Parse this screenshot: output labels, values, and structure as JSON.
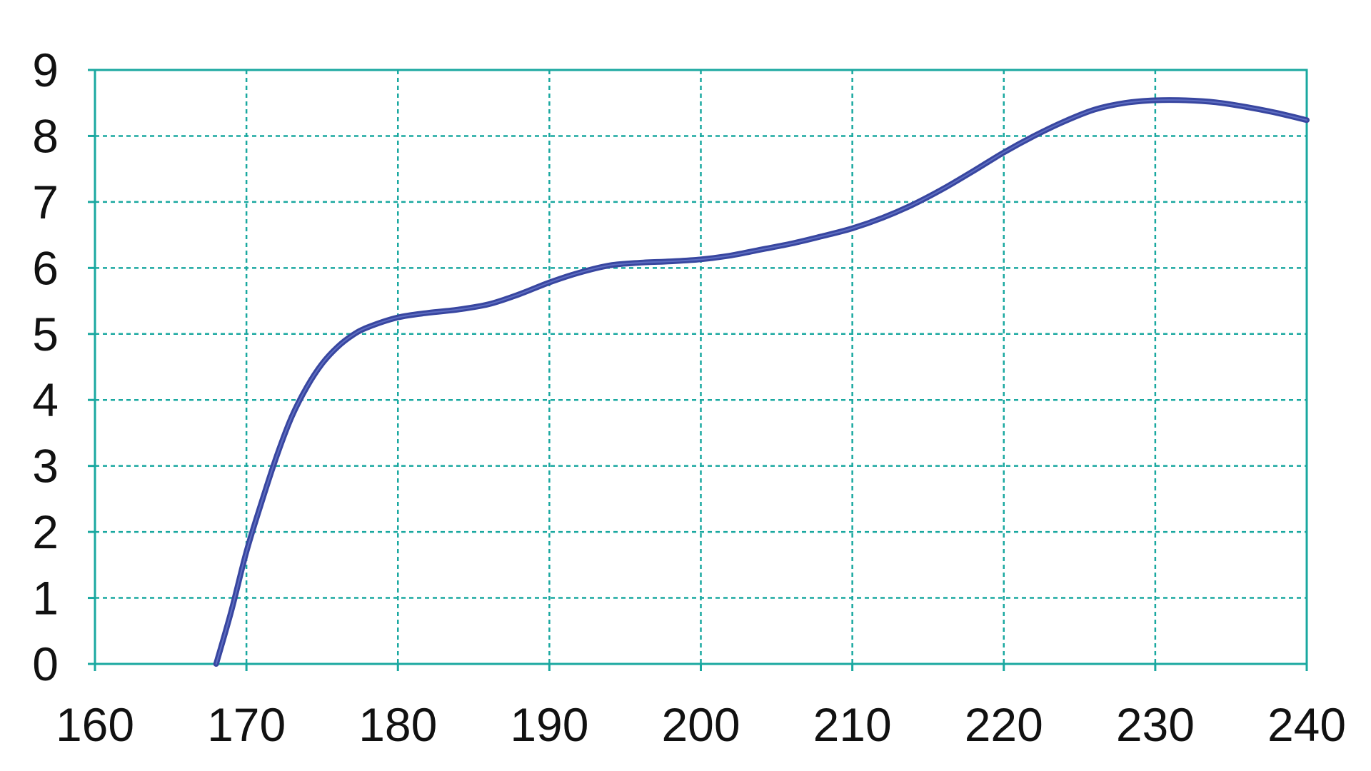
{
  "chart_data": {
    "type": "line",
    "title": "",
    "xlabel": "",
    "ylabel": "",
    "xlim": [
      160,
      240
    ],
    "ylim": [
      0,
      9
    ],
    "x_ticks": [
      160,
      170,
      180,
      190,
      200,
      210,
      220,
      230,
      240
    ],
    "y_ticks": [
      0,
      1,
      2,
      3,
      4,
      5,
      6,
      7,
      8,
      9
    ],
    "grid": true,
    "legend": "none",
    "colors": {
      "grid": "#1aa8a0",
      "axis": "#1aa8a0",
      "line": "#3846a0"
    },
    "series": [
      {
        "x": [
          168,
          169,
          170,
          171,
          172,
          173,
          174,
          175,
          176,
          177,
          178,
          180,
          182,
          184,
          186,
          188,
          190,
          192,
          194,
          196,
          198,
          200,
          202,
          204,
          206,
          208,
          210,
          212,
          214,
          216,
          218,
          220,
          222,
          224,
          226,
          228,
          230,
          232,
          234,
          236,
          238,
          240
        ],
        "values": [
          0.0,
          0.8,
          1.7,
          2.45,
          3.15,
          3.75,
          4.2,
          4.55,
          4.8,
          4.98,
          5.1,
          5.25,
          5.32,
          5.37,
          5.45,
          5.6,
          5.78,
          5.93,
          6.04,
          6.08,
          6.1,
          6.13,
          6.19,
          6.28,
          6.37,
          6.48,
          6.6,
          6.76,
          6.96,
          7.2,
          7.47,
          7.75,
          8.0,
          8.22,
          8.4,
          8.5,
          8.54,
          8.54,
          8.51,
          8.44,
          8.35,
          8.24
        ]
      }
    ]
  }
}
